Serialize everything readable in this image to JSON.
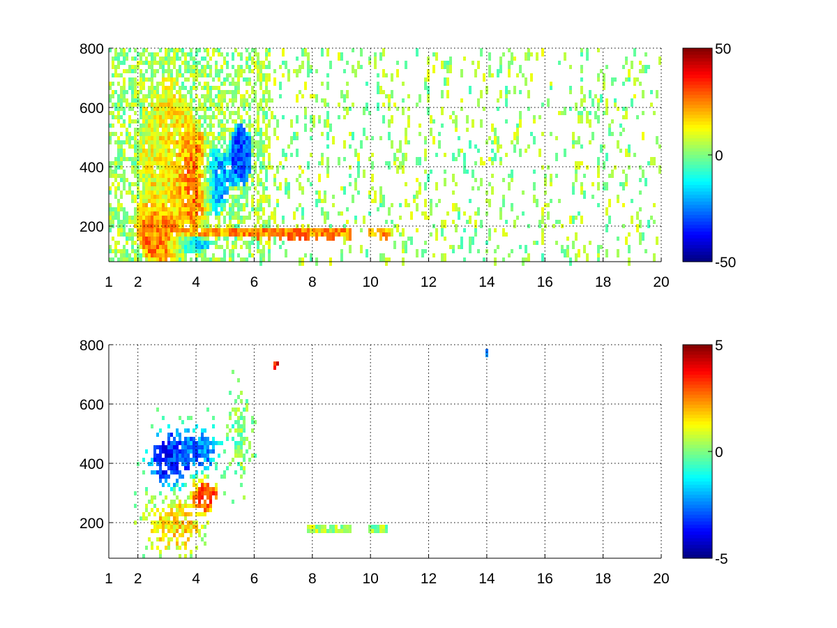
{
  "chart_data": [
    {
      "type": "heatmap",
      "panel": "top",
      "xticks": [
        1,
        2,
        4,
        6,
        8,
        10,
        12,
        14,
        16,
        18,
        20
      ],
      "xtick_labels": [
        "1",
        "2",
        "4",
        "6",
        "8",
        "10",
        "12",
        "14",
        "16",
        "18",
        "20"
      ],
      "xlim": [
        1,
        20
      ],
      "yticks": [
        200,
        400,
        600,
        800
      ],
      "ytick_labels": [
        "200",
        "400",
        "600",
        "800"
      ],
      "ylim": [
        80,
        800
      ],
      "grid": true,
      "colormap": "jet",
      "colorbar": {
        "clim": [
          -50,
          50
        ],
        "ticks": [
          50,
          0,
          -50
        ],
        "tick_labels": [
          "50",
          "0",
          "-50"
        ]
      },
      "features": [
        {
          "kind": "blob",
          "x": 3.0,
          "y": 420,
          "sx": 0.7,
          "sy": 190,
          "value": 12,
          "comment_color": "yellow"
        },
        {
          "kind": "blob",
          "x": 3.9,
          "y": 360,
          "sx": 0.35,
          "sy": 90,
          "value": 34,
          "comment_color": "red"
        },
        {
          "kind": "blob",
          "x": 2.7,
          "y": 180,
          "sx": 0.45,
          "sy": 55,
          "value": 30,
          "comment_color": "red"
        },
        {
          "kind": "blob",
          "x": 4.6,
          "y": 360,
          "sx": 0.3,
          "sy": 70,
          "value": -25,
          "comment_color": "blue"
        },
        {
          "kind": "blob",
          "x": 5.5,
          "y": 450,
          "sx": 0.25,
          "sy": 70,
          "value": -30,
          "comment_color": "blue"
        },
        {
          "kind": "blob",
          "x": 3.8,
          "y": 145,
          "sx": 0.4,
          "sy": 18,
          "value": -22,
          "comment_color": "blue"
        },
        {
          "kind": "band",
          "x0": 3.5,
          "x1": 9.3,
          "y": 185,
          "value": 28,
          "comment_color": "orange"
        },
        {
          "kind": "band",
          "x0": 9.9,
          "x1": 10.6,
          "y": 185,
          "value": 25,
          "comment_color": "orange"
        }
      ]
    },
    {
      "type": "heatmap",
      "panel": "bottom",
      "xticks": [
        1,
        2,
        4,
        6,
        8,
        10,
        12,
        14,
        16,
        18,
        20
      ],
      "xtick_labels": [
        "1",
        "2",
        "4",
        "6",
        "8",
        "10",
        "12",
        "14",
        "16",
        "18",
        "20"
      ],
      "xlim": [
        1,
        20
      ],
      "yticks": [
        200,
        400,
        600,
        800
      ],
      "ytick_labels": [
        "200",
        "400",
        "600",
        "800"
      ],
      "ylim": [
        80,
        800
      ],
      "grid": true,
      "colormap": "jet",
      "colorbar": {
        "clim": [
          -5,
          5
        ],
        "ticks": [
          5,
          0,
          -5
        ],
        "tick_labels": [
          "5",
          "0",
          "-5"
        ]
      },
      "features": [
        {
          "kind": "blob",
          "x": 3.0,
          "y": 420,
          "sx": 0.4,
          "sy": 60,
          "value": -3.5,
          "comment_color": "blue"
        },
        {
          "kind": "blob",
          "x": 4.0,
          "y": 450,
          "sx": 0.5,
          "sy": 50,
          "value": -2.5,
          "comment_color": "blue"
        },
        {
          "kind": "blob",
          "x": 4.3,
          "y": 300,
          "sx": 0.3,
          "sy": 40,
          "value": 3.0,
          "comment_color": "red"
        },
        {
          "kind": "blob",
          "x": 3.2,
          "y": 200,
          "sx": 0.6,
          "sy": 60,
          "value": 1.5,
          "comment_color": "yellow"
        },
        {
          "kind": "blob",
          "x": 5.5,
          "y": 500,
          "sx": 0.2,
          "sy": 90,
          "value": 0.0,
          "comment_color": "green"
        },
        {
          "kind": "band",
          "x0": 7.8,
          "x1": 9.3,
          "y": 185,
          "value": 0.5,
          "comment_color": "green"
        },
        {
          "kind": "band",
          "x0": 9.9,
          "x1": 10.5,
          "y": 185,
          "value": 0.3,
          "comment_color": "green"
        },
        {
          "kind": "spot",
          "x": 6.7,
          "y": 730,
          "value": 3.5,
          "comment_color": "orange"
        },
        {
          "kind": "spot",
          "x": 13.95,
          "y": 775,
          "value": -2.0,
          "comment_color": "cyan"
        }
      ]
    }
  ]
}
